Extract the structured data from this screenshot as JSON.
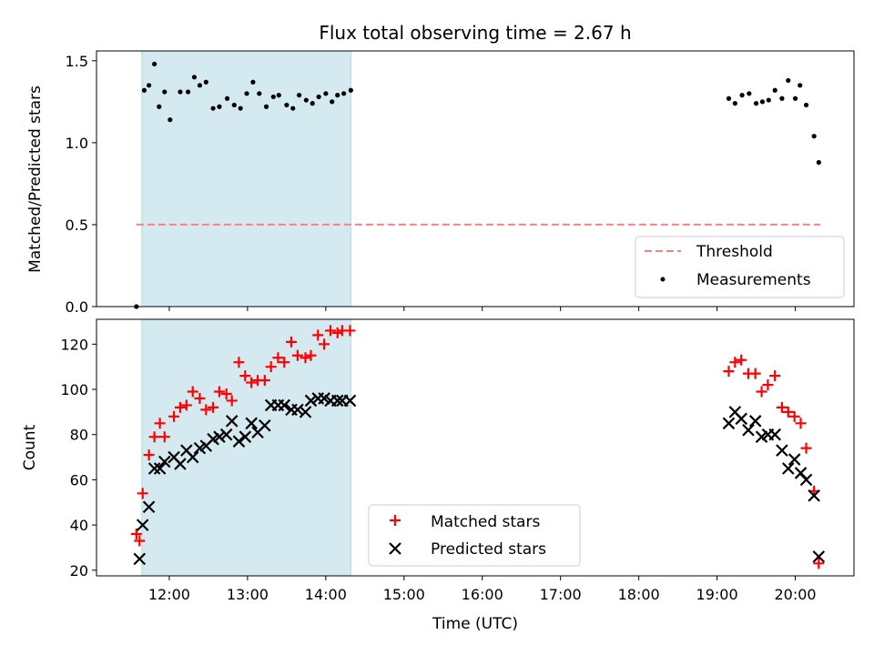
{
  "title": "Flux total observing time = 2.67 h",
  "chart_data": [
    {
      "type": "scatter",
      "name": "ratio",
      "ylabel": "Matched/Predicted stars",
      "xlim": [
        11.07,
        20.75
      ],
      "ylim": [
        0.0,
        1.56
      ],
      "shaded_span": {
        "x0": 11.65,
        "x1": 14.32,
        "color": "#d4eaf0"
      },
      "xticks": [
        12,
        13,
        14,
        15,
        16,
        17,
        18,
        19,
        20
      ],
      "yticks": [
        {
          "value": 0.0,
          "label": "0.0"
        },
        {
          "value": 0.5,
          "label": "0.5"
        },
        {
          "value": 1.0,
          "label": "1.0"
        },
        {
          "value": 1.5,
          "label": "1.5"
        }
      ],
      "threshold": {
        "name": "Threshold",
        "y": 0.5,
        "x0": 11.58,
        "x1": 20.32,
        "color": "#ff7f7f"
      },
      "measurements": {
        "name": "Measurements",
        "color": "#000000",
        "x": [
          11.58,
          11.68,
          11.74,
          11.81,
          11.87,
          11.94,
          12.01,
          12.14,
          12.24,
          12.32,
          12.39,
          12.47,
          12.56,
          12.64,
          12.74,
          12.83,
          12.91,
          12.99,
          13.07,
          13.15,
          13.24,
          13.33,
          13.4,
          13.5,
          13.58,
          13.66,
          13.75,
          13.83,
          13.91,
          14.0,
          14.08,
          14.15,
          14.23,
          14.32,
          19.15,
          19.23,
          19.32,
          19.41,
          19.5,
          19.58,
          19.66,
          19.74,
          19.83,
          19.91,
          20.0,
          20.06,
          20.14,
          20.24,
          20.3
        ],
        "y": [
          0.0,
          1.32,
          1.35,
          1.48,
          1.22,
          1.31,
          1.14,
          1.31,
          1.31,
          1.4,
          1.35,
          1.37,
          1.21,
          1.22,
          1.27,
          1.23,
          1.21,
          1.3,
          1.37,
          1.3,
          1.22,
          1.28,
          1.29,
          1.23,
          1.21,
          1.29,
          1.26,
          1.24,
          1.28,
          1.3,
          1.25,
          1.29,
          1.3,
          1.32,
          1.27,
          1.24,
          1.29,
          1.3,
          1.24,
          1.25,
          1.26,
          1.32,
          1.27,
          1.38,
          1.27,
          1.35,
          1.23,
          1.04,
          0.88
        ]
      }
    },
    {
      "type": "scatter",
      "name": "counts",
      "ylabel": "Count",
      "xlabel": "Time (UTC)",
      "xlim": [
        11.07,
        20.75
      ],
      "ylim": [
        17.5,
        131.0
      ],
      "shaded_span": {
        "x0": 11.65,
        "x1": 14.32,
        "color": "#d4eaf0"
      },
      "xticks": [
        {
          "value": 12,
          "label": "12:00"
        },
        {
          "value": 13,
          "label": "13:00"
        },
        {
          "value": 14,
          "label": "14:00"
        },
        {
          "value": 15,
          "label": "15:00"
        },
        {
          "value": 16,
          "label": "16:00"
        },
        {
          "value": 17,
          "label": "17:00"
        },
        {
          "value": 18,
          "label": "18:00"
        },
        {
          "value": 19,
          "label": "19:00"
        },
        {
          "value": 20,
          "label": "20:00"
        }
      ],
      "yticks": [
        {
          "value": 20,
          "label": "20"
        },
        {
          "value": 40,
          "label": "40"
        },
        {
          "value": 60,
          "label": "60"
        },
        {
          "value": 80,
          "label": "80"
        },
        {
          "value": 100,
          "label": "100"
        },
        {
          "value": 120,
          "label": "120"
        }
      ],
      "series": [
        {
          "name": "Matched stars",
          "marker": "+",
          "color": "#ff0000",
          "x": [
            11.58,
            11.62,
            11.66,
            11.74,
            11.81,
            11.88,
            11.94,
            12.06,
            12.14,
            12.22,
            12.3,
            12.39,
            12.47,
            12.56,
            12.64,
            12.73,
            12.8,
            12.89,
            12.97,
            13.05,
            13.13,
            13.22,
            13.3,
            13.39,
            13.47,
            13.56,
            13.64,
            13.74,
            13.81,
            13.9,
            13.98,
            14.06,
            14.15,
            14.21,
            14.31,
            19.15,
            19.23,
            19.31,
            19.4,
            19.49,
            19.57,
            19.65,
            19.74,
            19.83,
            19.91,
            19.99,
            20.07,
            20.14,
            20.24,
            20.3
          ],
          "y": [
            36,
            33,
            54,
            71,
            79,
            85,
            79,
            88,
            92,
            93,
            99,
            96,
            91,
            92,
            99,
            98,
            95,
            112,
            106,
            103,
            104,
            104,
            110,
            114,
            112,
            121,
            115,
            114,
            115,
            124,
            120,
            126,
            125,
            126,
            126,
            108,
            112,
            113,
            107,
            107,
            99,
            102,
            106,
            92,
            90,
            88,
            85,
            74,
            55,
            23
          ]
        },
        {
          "name": "Predicted stars",
          "marker": "x",
          "color": "#000000",
          "x": [
            11.66,
            11.74,
            11.81,
            11.88,
            11.94,
            12.06,
            12.14,
            12.22,
            12.3,
            12.39,
            12.47,
            12.56,
            12.64,
            12.73,
            12.8,
            12.89,
            12.97,
            13.05,
            13.13,
            13.22,
            13.3,
            13.39,
            13.47,
            13.56,
            13.64,
            13.74,
            13.81,
            13.9,
            13.98,
            14.06,
            14.15,
            14.21,
            14.31,
            11.62,
            19.15,
            19.23,
            19.31,
            19.4,
            19.49,
            19.57,
            19.65,
            19.74,
            19.83,
            19.91,
            19.99,
            20.07,
            20.14,
            20.24,
            20.3
          ],
          "y": [
            40,
            48,
            65,
            65,
            68,
            70,
            67,
            73,
            70,
            74,
            75,
            78,
            79,
            80,
            86,
            77,
            79,
            85,
            81,
            84,
            93,
            93,
            93,
            91,
            91,
            90,
            95,
            96,
            96,
            95,
            95,
            95,
            95,
            25,
            85,
            90,
            87,
            82,
            86,
            79,
            80,
            80,
            73,
            65,
            69,
            63,
            60,
            53,
            26
          ]
        }
      ]
    }
  ]
}
